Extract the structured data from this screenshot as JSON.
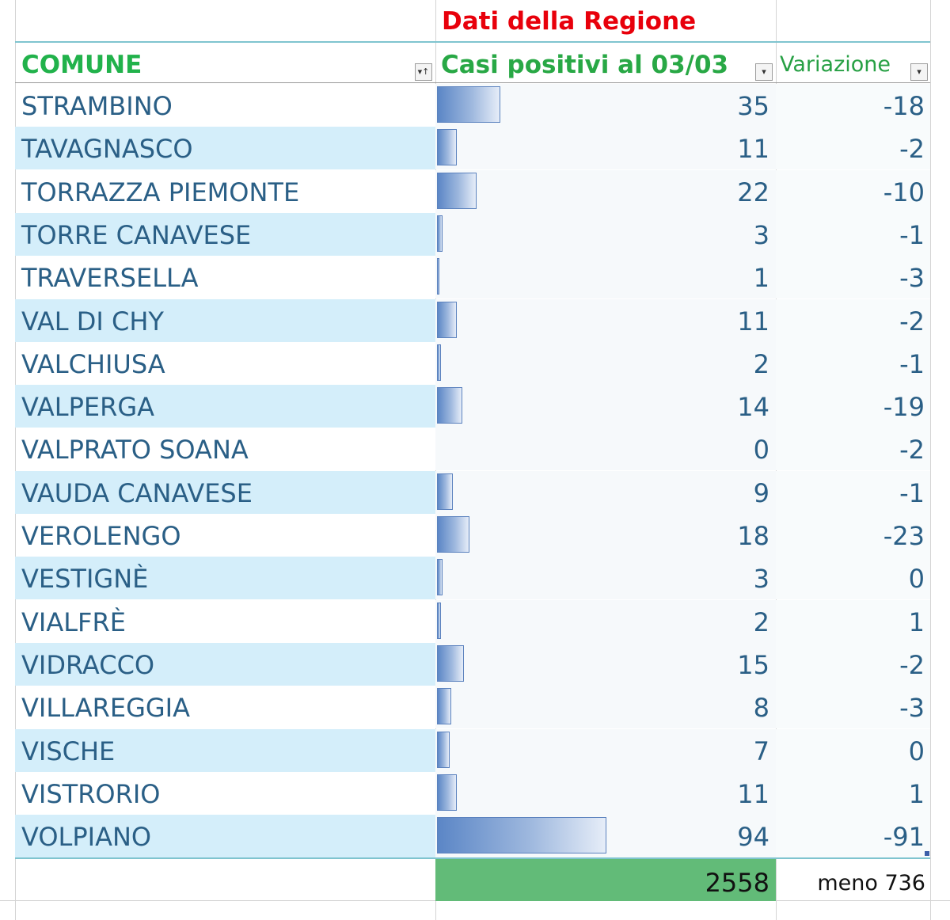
{
  "title": "Dati della Regione",
  "headers": {
    "comune": "COMUNE",
    "casi": "Casi positivi al 03/03",
    "variazione": "Variazione"
  },
  "filter_icons": {
    "comune": "sort-filter-icon",
    "casi": "dropdown-filter-icon",
    "variazione": "dropdown-filter-icon"
  },
  "rows": [
    {
      "comune": "STRAMBINO",
      "casi": "35",
      "variazione": "-18"
    },
    {
      "comune": "TAVAGNASCO",
      "casi": "11",
      "variazione": "-2"
    },
    {
      "comune": "TORRAZZA PIEMONTE",
      "casi": "22",
      "variazione": "-10"
    },
    {
      "comune": "TORRE CANAVESE",
      "casi": "3",
      "variazione": "-1"
    },
    {
      "comune": "TRAVERSELLA",
      "casi": "1",
      "variazione": "-3"
    },
    {
      "comune": "VAL DI CHY",
      "casi": "11",
      "variazione": "-2"
    },
    {
      "comune": "VALCHIUSA",
      "casi": "2",
      "variazione": "-1"
    },
    {
      "comune": "VALPERGA",
      "casi": "14",
      "variazione": "-19"
    },
    {
      "comune": "VALPRATO SOANA",
      "casi": "0",
      "variazione": "-2"
    },
    {
      "comune": "VAUDA CANAVESE",
      "casi": "9",
      "variazione": "-1"
    },
    {
      "comune": "VEROLENGO",
      "casi": "18",
      "variazione": "-23"
    },
    {
      "comune": "VESTIGNÈ",
      "casi": "3",
      "variazione": "0"
    },
    {
      "comune": "VIALFRÈ",
      "casi": "2",
      "variazione": "1"
    },
    {
      "comune": "VIDRACCO",
      "casi": "15",
      "variazione": "-2"
    },
    {
      "comune": "VILLAREGGIA",
      "casi": "8",
      "variazione": "-3"
    },
    {
      "comune": "VISCHE",
      "casi": "7",
      "variazione": "0"
    },
    {
      "comune": "VISTRORIO",
      "casi": "11",
      "variazione": "1"
    },
    {
      "comune": "VOLPIANO",
      "casi": "94",
      "variazione": "-91"
    }
  ],
  "data_bar_max": 94,
  "totals": {
    "casi": "2558",
    "variazione": "meno 736"
  },
  "colors": {
    "title": "#e8000b",
    "header": "#21b24b",
    "band": "#d4eefa",
    "text": "#2a5f86",
    "total_fill": "#62bb78"
  }
}
